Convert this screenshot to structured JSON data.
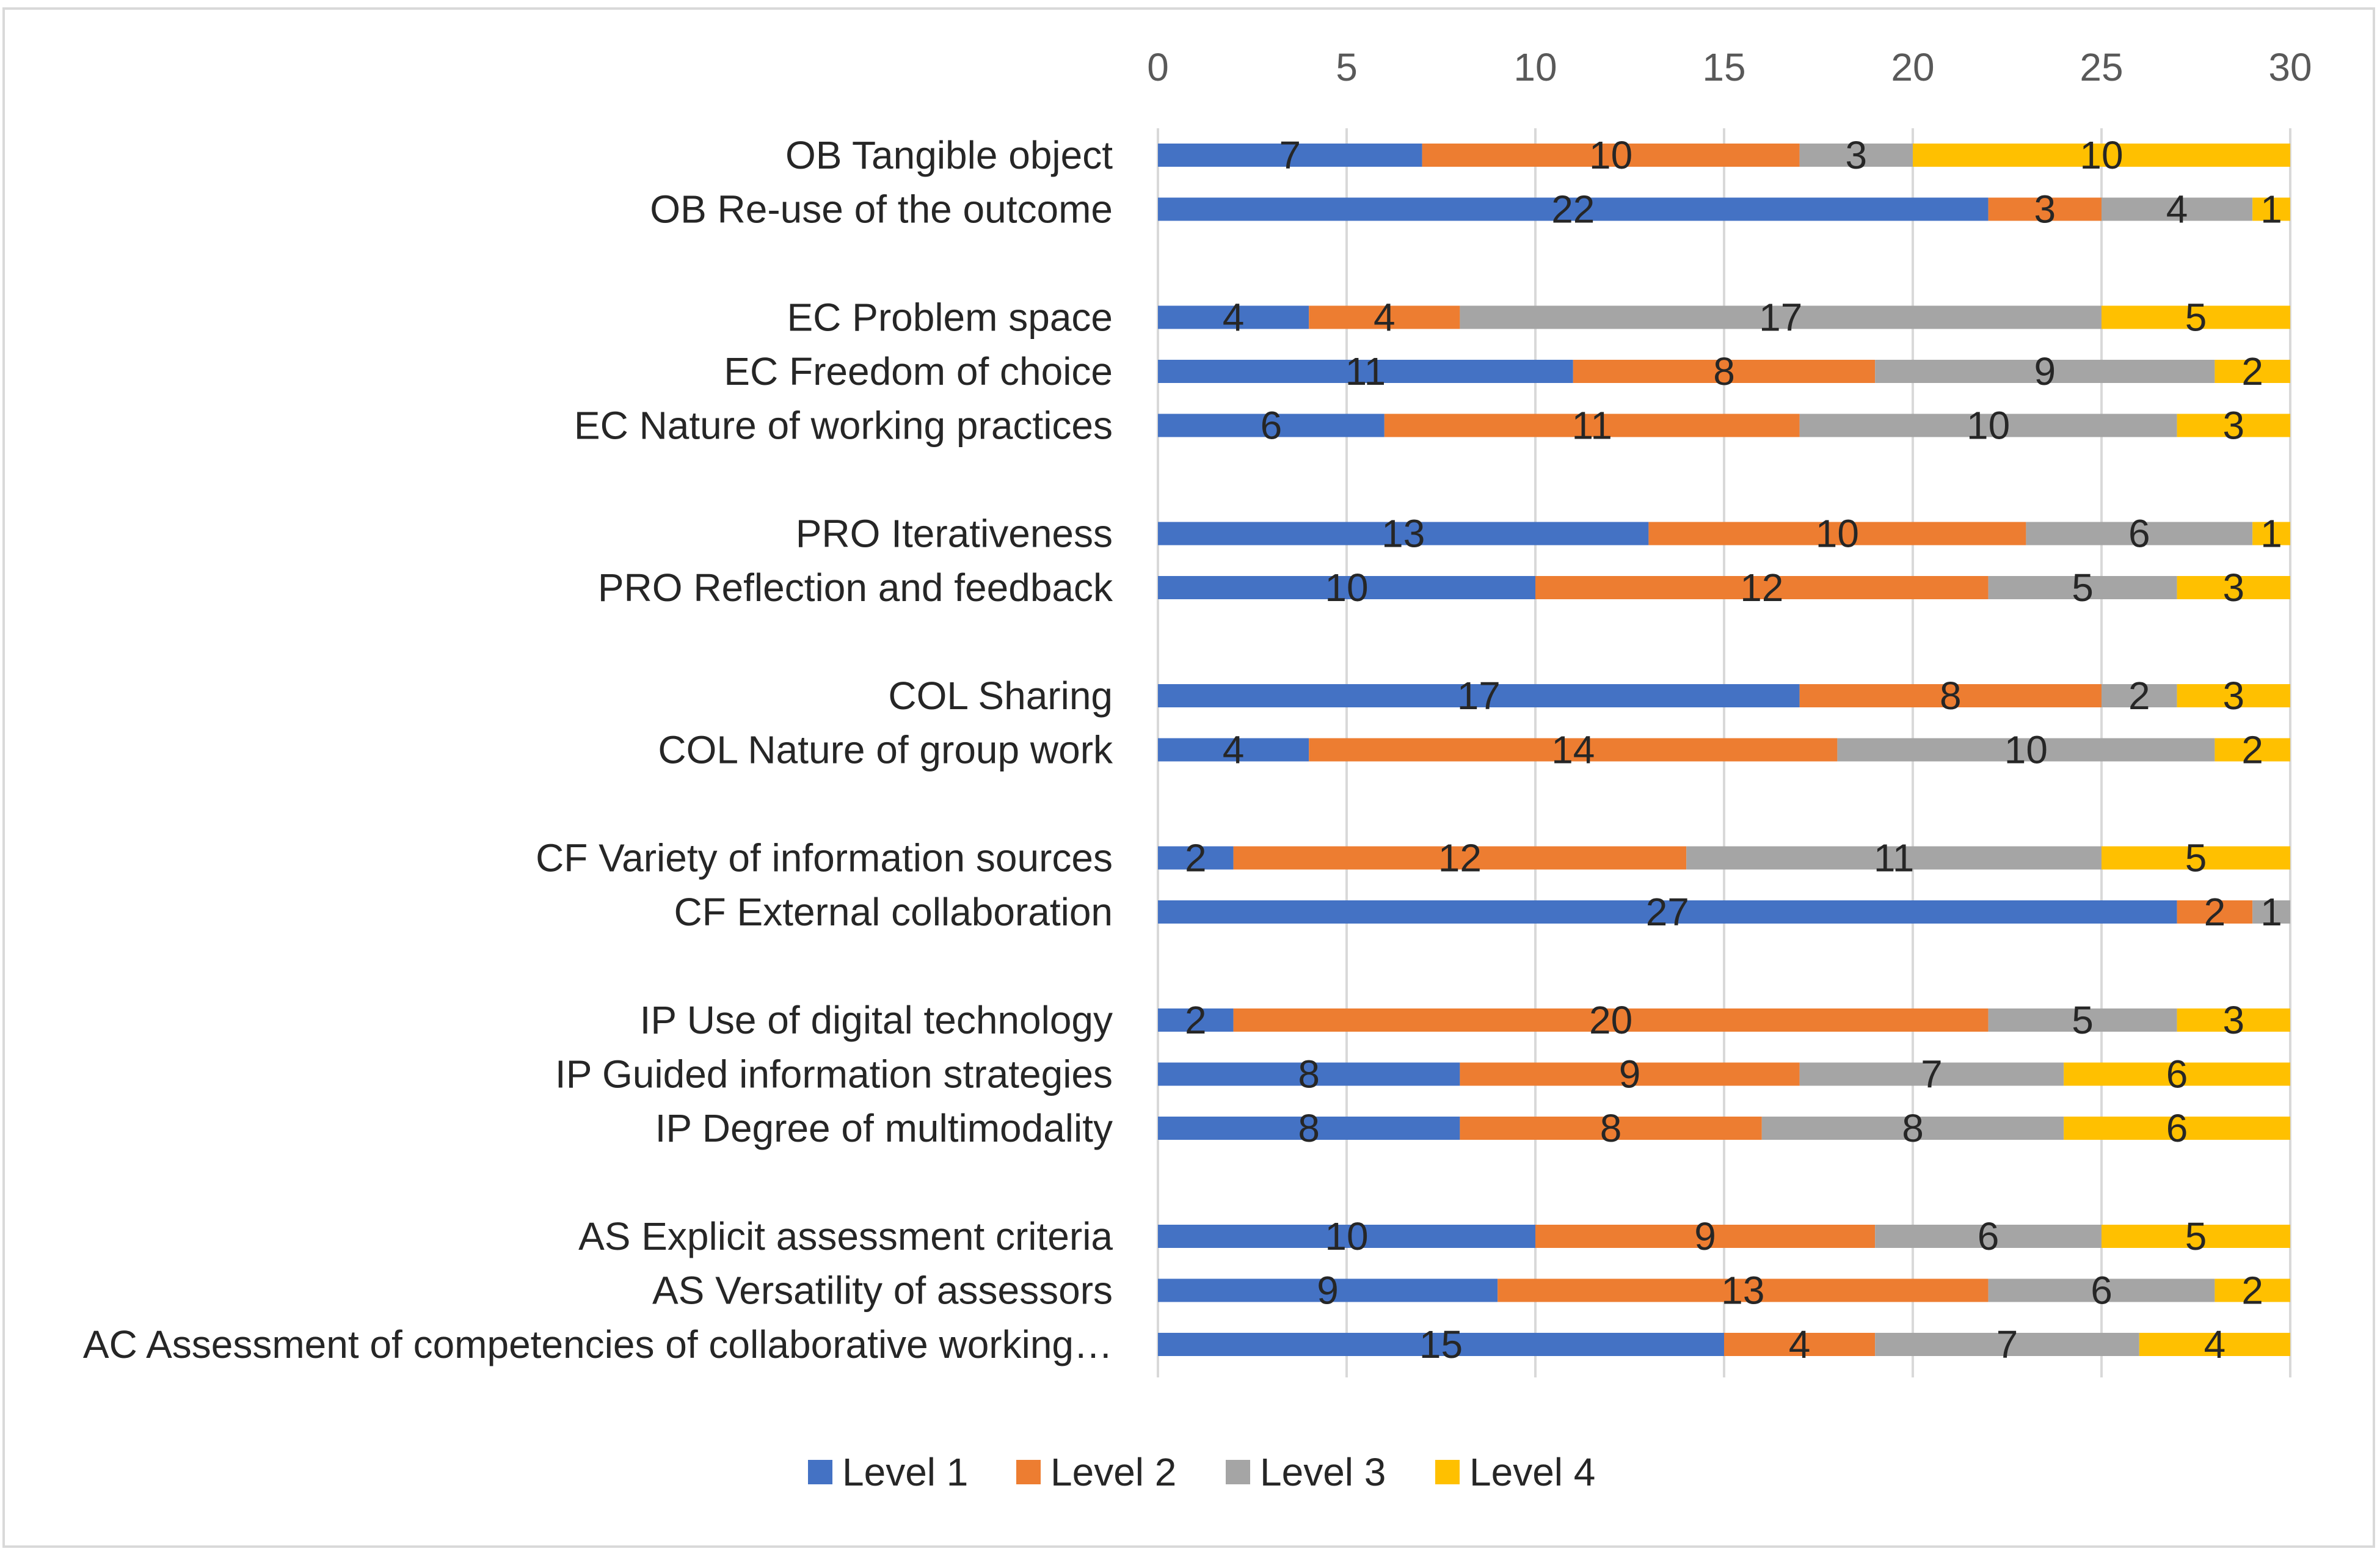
{
  "chart_data": {
    "type": "bar",
    "orientation": "horizontal",
    "stacked": true,
    "title": "",
    "xlabel": "",
    "ylabel": "",
    "xlim": [
      0,
      30
    ],
    "ticks": [
      "0",
      "5",
      "10",
      "15",
      "20",
      "25",
      "30"
    ],
    "tick_values": [
      0,
      5,
      10,
      15,
      20,
      25,
      30
    ],
    "grid": true,
    "legend_position": "bottom",
    "categories": [
      "OB Tangible object",
      "OB Re-use of the outcome",
      "",
      "EC Problem space",
      "EC Freedom of choice",
      "EC Nature of working practices",
      "",
      "PRO Iterativeness",
      "PRO Reflection and feedback",
      "",
      "COL Sharing",
      "COL Nature of group work",
      "",
      "CF Variety of information sources",
      "CF External collaboration",
      "",
      "IP Use of digital technology",
      "IP Guided information strategies",
      "IP Degree of multimodality",
      "",
      "AS Explicit assessment criteria",
      "AS Versatility of assessors",
      "AC Assessment of competencies of collaborative working…"
    ],
    "series": [
      {
        "name": "Level 1",
        "color": "#4472c4",
        "values": [
          7,
          22,
          null,
          4,
          11,
          6,
          null,
          13,
          10,
          null,
          17,
          4,
          null,
          2,
          27,
          null,
          2,
          8,
          8,
          null,
          10,
          9,
          15
        ]
      },
      {
        "name": "Level 2",
        "color": "#ed7d31",
        "values": [
          10,
          3,
          null,
          4,
          8,
          11,
          null,
          10,
          12,
          null,
          8,
          14,
          null,
          12,
          2,
          null,
          20,
          9,
          8,
          null,
          9,
          13,
          4
        ]
      },
      {
        "name": "Level 3",
        "color": "#a5a5a5",
        "values": [
          3,
          4,
          null,
          17,
          9,
          10,
          null,
          6,
          5,
          null,
          2,
          10,
          null,
          11,
          1,
          null,
          5,
          7,
          8,
          null,
          6,
          6,
          7
        ]
      },
      {
        "name": "Level 4",
        "color": "#ffc000",
        "values": [
          10,
          1,
          null,
          5,
          2,
          3,
          null,
          1,
          3,
          null,
          3,
          2,
          null,
          5,
          null,
          null,
          3,
          6,
          6,
          null,
          5,
          2,
          4
        ]
      }
    ]
  }
}
